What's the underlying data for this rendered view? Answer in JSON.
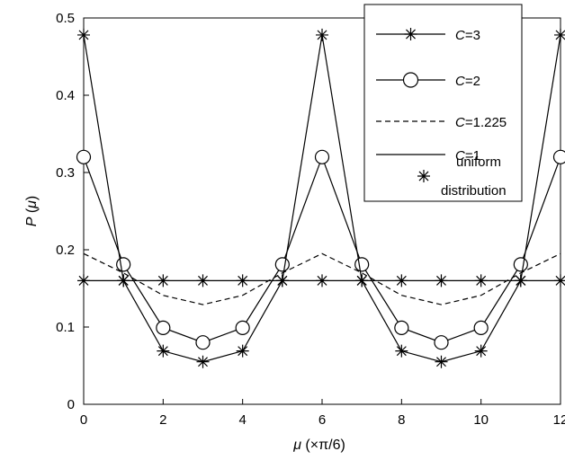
{
  "chart_data": {
    "type": "line",
    "x": [
      0,
      1,
      2,
      3,
      4,
      5,
      6,
      7,
      8,
      9,
      10,
      11,
      12
    ],
    "xlim": [
      0,
      12
    ],
    "ylim": [
      0,
      0.5
    ],
    "xticks": [
      "0",
      "2",
      "4",
      "6",
      "8",
      "10",
      "12"
    ],
    "yticks": [
      "0",
      "0.1",
      "0.2",
      "0.3",
      "0.4",
      "0.5"
    ],
    "xticks_values": [
      0,
      2,
      4,
      6,
      8,
      10,
      12
    ],
    "yticks_values": [
      0,
      0.1,
      0.2,
      0.3,
      0.4,
      0.5
    ],
    "xlabel": {
      "symbol": "μ",
      "rest": " (×π/6)"
    },
    "ylabel": {
      "symbol": "P",
      "rest": " (",
      "symbol2": "μ",
      "end": ")"
    },
    "grid": false,
    "legend_position": "top-right",
    "series": [
      {
        "name": {
          "var": "C",
          "rest": "=3"
        },
        "marker": "asterisk",
        "line": "solid",
        "values": [
          0.478,
          0.16,
          0.069,
          0.055,
          0.069,
          0.16,
          0.478,
          0.16,
          0.069,
          0.055,
          0.069,
          0.16,
          0.478
        ]
      },
      {
        "name": {
          "var": "C",
          "rest": "=2"
        },
        "marker": "circle",
        "line": "solid",
        "values": [
          0.32,
          0.181,
          0.099,
          0.08,
          0.099,
          0.181,
          0.32,
          0.181,
          0.099,
          0.08,
          0.099,
          0.181,
          0.32
        ]
      },
      {
        "name": {
          "var": "C",
          "rest": "=1.225"
        },
        "marker": "none",
        "line": "dashed",
        "values": [
          0.195,
          0.17,
          0.141,
          0.129,
          0.141,
          0.17,
          0.195,
          0.17,
          0.141,
          0.129,
          0.141,
          0.17,
          0.195
        ]
      },
      {
        "name": {
          "var": "C",
          "rest": "=1"
        },
        "marker": "none",
        "line": "solid",
        "values": [
          0.16,
          0.16,
          0.16,
          0.16,
          0.16,
          0.16,
          0.16,
          0.16,
          0.16,
          0.16,
          0.16,
          0.16,
          0.16
        ]
      },
      {
        "name": {
          "line1": "uniform",
          "line2": "distribution"
        },
        "marker": "asterisk",
        "line": "none",
        "values": [
          0.16,
          0.16,
          0.16,
          0.16,
          0.16,
          0.16,
          0.16,
          0.16,
          0.16,
          0.16,
          0.16,
          0.16,
          0.16
        ]
      }
    ]
  }
}
